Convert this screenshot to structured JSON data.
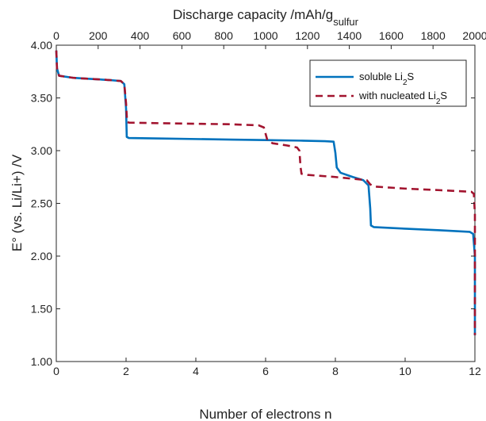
{
  "chart_data": {
    "type": "line",
    "xlabel": "Number of electrons n",
    "x2label": {
      "main": "Discharge capacity /mAh/g",
      "sub": "sulfur"
    },
    "ylabel": "E° (vs. Li/Li+) /V",
    "xlim": [
      0,
      12
    ],
    "x2lim": [
      0,
      2000
    ],
    "ylim": [
      1.0,
      4.0
    ],
    "x_ticks": [
      "0",
      "2",
      "4",
      "6",
      "8",
      "10",
      "12"
    ],
    "x2_ticks": [
      "0",
      "200",
      "400",
      "600",
      "800",
      "1000",
      "1200",
      "1400",
      "1600",
      "1800",
      "2000"
    ],
    "y_ticks": [
      "1.00",
      "1.50",
      "2.00",
      "2.50",
      "3.00",
      "3.50",
      "4.00"
    ],
    "grid": false,
    "legend_position": "top-right",
    "series": [
      {
        "name_parts": [
          "soluble Li",
          "2",
          "S"
        ],
        "color": "#0072BD",
        "dash": "solid",
        "points": [
          [
            0.0,
            3.95
          ],
          [
            0.02,
            3.78
          ],
          [
            0.08,
            3.71
          ],
          [
            0.5,
            3.69
          ],
          [
            1.0,
            3.68
          ],
          [
            1.5,
            3.67
          ],
          [
            1.85,
            3.66
          ],
          [
            1.95,
            3.63
          ],
          [
            2.0,
            3.4
          ],
          [
            2.02,
            3.13
          ],
          [
            2.08,
            3.12
          ],
          [
            3.0,
            3.115
          ],
          [
            4.0,
            3.11
          ],
          [
            5.0,
            3.105
          ],
          [
            6.0,
            3.1
          ],
          [
            7.0,
            3.095
          ],
          [
            7.7,
            3.09
          ],
          [
            7.95,
            3.085
          ],
          [
            8.0,
            2.98
          ],
          [
            8.04,
            2.84
          ],
          [
            8.15,
            2.79
          ],
          [
            8.5,
            2.75
          ],
          [
            8.8,
            2.72
          ],
          [
            8.95,
            2.67
          ],
          [
            9.0,
            2.45
          ],
          [
            9.02,
            2.29
          ],
          [
            9.1,
            2.275
          ],
          [
            10.0,
            2.26
          ],
          [
            11.0,
            2.245
          ],
          [
            11.85,
            2.23
          ],
          [
            11.95,
            2.21
          ],
          [
            12.0,
            2.0
          ],
          [
            12.0,
            1.25
          ]
        ]
      },
      {
        "name_parts": [
          "with nucleated Li",
          "2",
          "S"
        ],
        "color": "#A2142F",
        "dash": "dashed",
        "points": [
          [
            0.0,
            3.95
          ],
          [
            0.02,
            3.78
          ],
          [
            0.08,
            3.71
          ],
          [
            0.5,
            3.69
          ],
          [
            1.0,
            3.68
          ],
          [
            1.5,
            3.67
          ],
          [
            1.85,
            3.66
          ],
          [
            1.95,
            3.63
          ],
          [
            2.0,
            3.45
          ],
          [
            2.03,
            3.27
          ],
          [
            2.1,
            3.265
          ],
          [
            3.0,
            3.26
          ],
          [
            4.0,
            3.255
          ],
          [
            5.0,
            3.25
          ],
          [
            5.8,
            3.24
          ],
          [
            5.95,
            3.22
          ],
          [
            6.0,
            3.16
          ],
          [
            6.05,
            3.1
          ],
          [
            6.2,
            3.07
          ],
          [
            6.6,
            3.05
          ],
          [
            6.9,
            3.03
          ],
          [
            6.97,
            3.0
          ],
          [
            7.0,
            2.85
          ],
          [
            7.03,
            2.78
          ],
          [
            7.2,
            2.77
          ],
          [
            8.0,
            2.75
          ],
          [
            8.9,
            2.72
          ],
          [
            9.0,
            2.68
          ],
          [
            9.1,
            2.66
          ],
          [
            10.0,
            2.64
          ],
          [
            11.0,
            2.625
          ],
          [
            11.9,
            2.61
          ],
          [
            11.97,
            2.59
          ],
          [
            12.0,
            2.4
          ],
          [
            12.0,
            1.25
          ]
        ]
      }
    ]
  }
}
